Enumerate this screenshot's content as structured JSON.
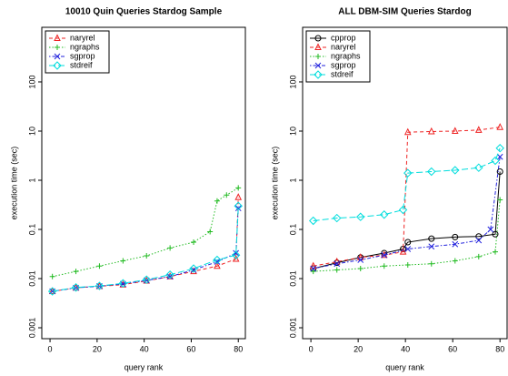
{
  "chart_data": [
    {
      "type": "line",
      "title": "10010 Quin Queries Stardog Sample",
      "x_label": "query rank",
      "y_label": "execution time (sec)",
      "log_y": true,
      "xlim": [
        -3.5,
        83
      ],
      "ylim": [
        0.0006,
        1290
      ],
      "xticks": [
        0,
        20,
        40,
        60,
        80
      ],
      "yticks": [
        0.001,
        0.01,
        0.1,
        1,
        10,
        100
      ],
      "legend": "top-left",
      "series": [
        {
          "name": "naryrel",
          "color": "#ee2222",
          "linestyle": "dashed",
          "marker": "triangle",
          "x": [
            1,
            11,
            21,
            31,
            41,
            51,
            61,
            71,
            79,
            80
          ],
          "values": [
            0.0055,
            0.0065,
            0.007,
            0.0075,
            0.009,
            0.011,
            0.014,
            0.018,
            0.025,
            0.45
          ]
        },
        {
          "name": "ngraphs",
          "color": "#22bb22",
          "linestyle": "dotted",
          "marker": "plus",
          "x": [
            1,
            11,
            21,
            31,
            41,
            51,
            61,
            68,
            71,
            75,
            80
          ],
          "values": [
            0.011,
            0.014,
            0.018,
            0.023,
            0.029,
            0.042,
            0.055,
            0.09,
            0.38,
            0.5,
            0.7
          ]
        },
        {
          "name": "sgprop",
          "color": "#2222dd",
          "linestyle": "dotdash",
          "marker": "x",
          "x": [
            1,
            11,
            21,
            31,
            41,
            51,
            61,
            71,
            79,
            80
          ],
          "values": [
            0.0055,
            0.0065,
            0.007,
            0.0078,
            0.0092,
            0.011,
            0.015,
            0.022,
            0.033,
            0.27
          ]
        },
        {
          "name": "stdreif",
          "color": "#00dddd",
          "linestyle": "longdash",
          "marker": "diamond",
          "x": [
            1,
            11,
            21,
            31,
            41,
            51,
            61,
            71,
            79,
            80
          ],
          "values": [
            0.0055,
            0.0066,
            0.0071,
            0.008,
            0.0095,
            0.012,
            0.016,
            0.024,
            0.03,
            0.3
          ]
        }
      ]
    },
    {
      "type": "line",
      "title": "ALL DBM-SIM Queries Stardog",
      "x_label": "query rank",
      "y_label": "execution time (sec)",
      "log_y": true,
      "xlim": [
        -3.5,
        83
      ],
      "ylim": [
        0.0006,
        1290
      ],
      "xticks": [
        0,
        20,
        40,
        60,
        80
      ],
      "yticks": [
        0.001,
        0.01,
        0.1,
        1,
        10,
        100
      ],
      "legend": "top-left",
      "series": [
        {
          "name": "cpprop",
          "color": "#000000",
          "linestyle": "solid",
          "marker": "circle",
          "x": [
            1,
            11,
            21,
            31,
            39,
            41,
            51,
            61,
            71,
            78,
            80
          ],
          "values": [
            0.016,
            0.021,
            0.027,
            0.033,
            0.04,
            0.055,
            0.065,
            0.07,
            0.072,
            0.08,
            1.5
          ]
        },
        {
          "name": "naryrel",
          "color": "#ee2222",
          "linestyle": "dashed",
          "marker": "triangle",
          "x": [
            1,
            11,
            21,
            31,
            39,
            41,
            51,
            61,
            71,
            80
          ],
          "values": [
            0.018,
            0.022,
            0.027,
            0.03,
            0.035,
            9.5,
            9.8,
            10,
            10.5,
            12
          ]
        },
        {
          "name": "ngraphs",
          "color": "#22bb22",
          "linestyle": "dotted",
          "marker": "plus",
          "x": [
            1,
            11,
            21,
            31,
            41,
            51,
            61,
            71,
            78,
            80
          ],
          "values": [
            0.014,
            0.015,
            0.016,
            0.018,
            0.019,
            0.02,
            0.023,
            0.028,
            0.035,
            0.4
          ]
        },
        {
          "name": "sgprop",
          "color": "#2222dd",
          "linestyle": "dotdash",
          "marker": "x",
          "x": [
            1,
            11,
            21,
            31,
            41,
            51,
            61,
            71,
            76,
            80
          ],
          "values": [
            0.016,
            0.02,
            0.024,
            0.03,
            0.04,
            0.045,
            0.05,
            0.06,
            0.1,
            3
          ]
        },
        {
          "name": "stdreif",
          "color": "#00dddd",
          "linestyle": "longdash",
          "marker": "diamond",
          "x": [
            1,
            11,
            21,
            31,
            39,
            41,
            51,
            61,
            71,
            78,
            80
          ],
          "values": [
            0.15,
            0.17,
            0.18,
            0.2,
            0.25,
            1.4,
            1.5,
            1.6,
            1.8,
            2.5,
            4.5
          ]
        }
      ]
    }
  ]
}
